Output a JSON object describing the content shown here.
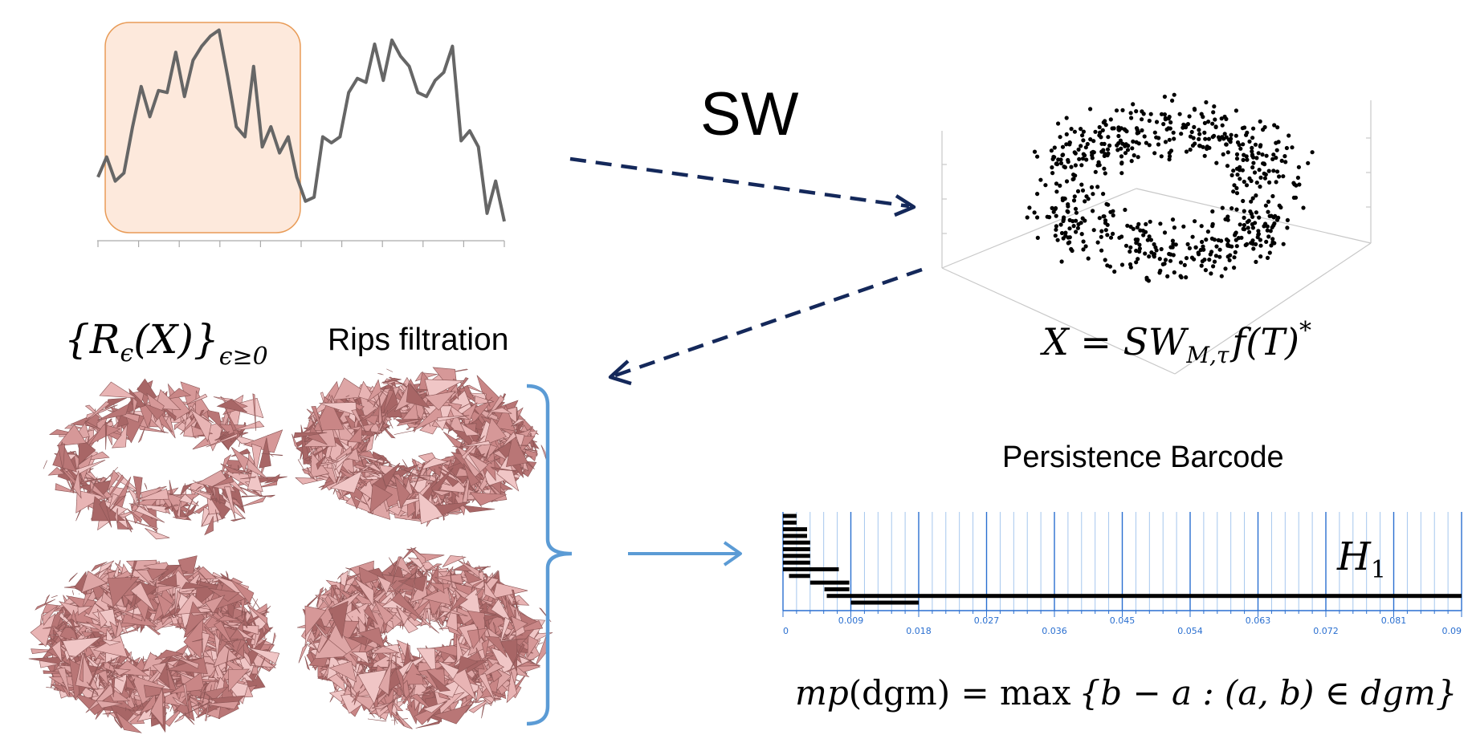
{
  "labels": {
    "sw": "SW",
    "rips_set": "{R",
    "rips_sub_eps": "ϵ",
    "rips_X": "(X)}",
    "rips_sub_cond": "ϵ≥0",
    "rips_filtration": "Rips filtration",
    "embedding_X": "X = SW",
    "embedding_sub": "M,τ",
    "embedding_rest": "f(T)",
    "embedding_star": "*",
    "persistence_title": "Persistence Barcode",
    "h1_H": "H",
    "h1_sub": "1",
    "formula_mp": "mp",
    "formula_dgm1": "(dgm) = max",
    "formula_body": "{b − a : (a, b) ∈ dgm}"
  },
  "signal": {
    "values": [
      0.3,
      0.4,
      0.28,
      0.32,
      0.55,
      0.75,
      0.6,
      0.73,
      0.72,
      0.92,
      0.7,
      0.88,
      0.95,
      1.0,
      1.03,
      0.8,
      0.55,
      0.5,
      0.85,
      0.45,
      0.55,
      0.42,
      0.5,
      0.3,
      0.18,
      0.2,
      0.5,
      0.47,
      0.5,
      0.72,
      0.79,
      0.77,
      0.96,
      0.78,
      0.98,
      0.9,
      0.85,
      0.72,
      0.7,
      0.78,
      0.82,
      0.95,
      0.48,
      0.53,
      0.45,
      0.12,
      0.28,
      0.08
    ]
  },
  "barcode": {
    "ticks_upper": [
      "0.009",
      "0.027",
      "0.045",
      "0.063",
      "0.081"
    ],
    "ticks_lower": [
      "0",
      "0.018",
      "0.036",
      "0.054",
      "0.072",
      "0.09"
    ],
    "x_range": [
      0,
      0.09
    ],
    "bars": [
      {
        "birth": 0.0,
        "death": 0.0018
      },
      {
        "birth": 0.0,
        "death": 0.0018
      },
      {
        "birth": 0.0,
        "death": 0.0032
      },
      {
        "birth": 0.0,
        "death": 0.0032
      },
      {
        "birth": 0.0,
        "death": 0.0036
      },
      {
        "birth": 0.0,
        "death": 0.0036
      },
      {
        "birth": 0.0,
        "death": 0.0036
      },
      {
        "birth": 0.0,
        "death": 0.0036
      },
      {
        "birth": 0.0,
        "death": 0.0074
      },
      {
        "birth": 0.0008,
        "death": 0.0036
      },
      {
        "birth": 0.0036,
        "death": 0.0088
      },
      {
        "birth": 0.0055,
        "death": 0.0088
      },
      {
        "birth": 0.0058,
        "death": 0.09
      },
      {
        "birth": 0.009,
        "death": 0.018
      }
    ]
  },
  "colors": {
    "dashed_arrow": "#14285a",
    "solid_arrow": "#5b9bd5",
    "window_fill": "#fde6d6",
    "window_stroke": "#e58a3a",
    "signal_line": "#666666",
    "mesh_pink": "#d69898",
    "grid_blue": "#2a6fd0"
  }
}
